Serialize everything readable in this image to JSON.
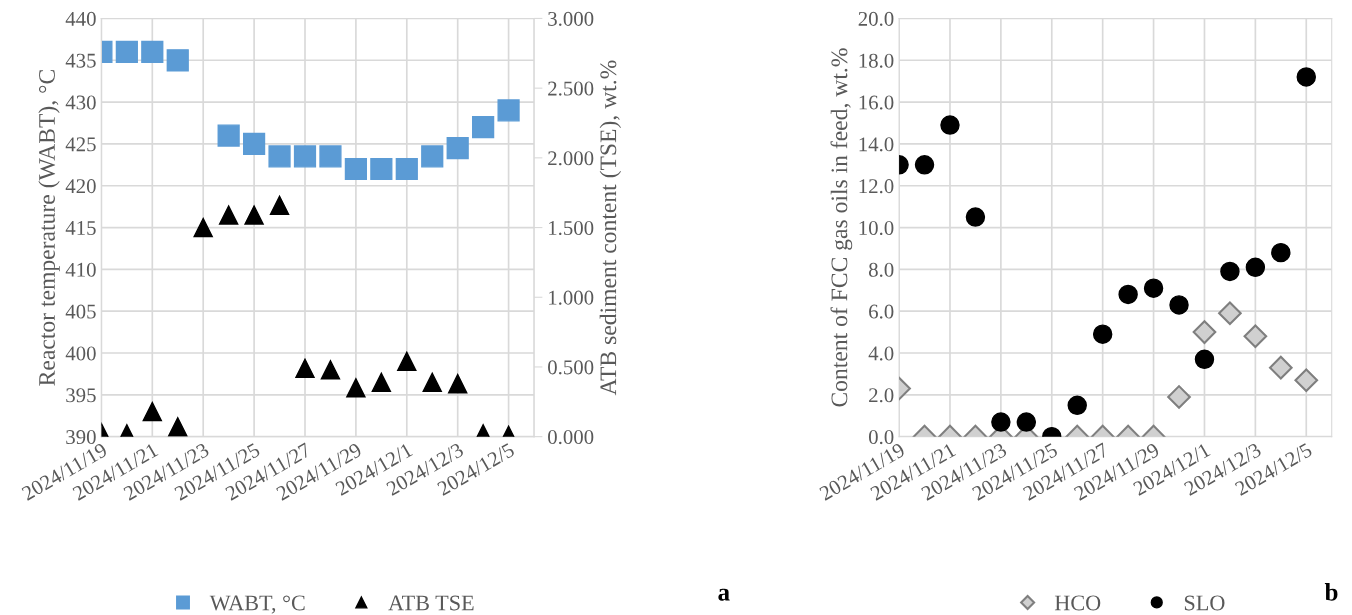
{
  "chart_data": [
    {
      "type": "scatter",
      "ylabel": "Reactor temperature (WABT), °C",
      "y2label": "ATB sediment content (TSE), wt.%",
      "annotations": [
        "a"
      ],
      "x": [
        "2024-11-19",
        "2024-11-20",
        "2024-11-21",
        "2024-11-22",
        "2024-11-23",
        "2024-11-24",
        "2024-11-25",
        "2024-11-26",
        "2024-11-27",
        "2024-11-28",
        "2024-11-29",
        "2024-11-30",
        "2024-12-01",
        "2024-12-02",
        "2024-12-03",
        "2024-12-04",
        "2024-12-05"
      ],
      "xlim": [
        "2024-11-19",
        "2024-12-06"
      ],
      "xticks": [
        {
          "value": "2024-11-19",
          "label": "2024/11/19"
        },
        {
          "value": "2024-11-21",
          "label": "2024/11/21"
        },
        {
          "value": "2024-11-23",
          "label": "2024/11/23"
        },
        {
          "value": "2024-11-25",
          "label": "2024/11/25"
        },
        {
          "value": "2024-11-27",
          "label": "2024/11/27"
        },
        {
          "value": "2024-11-29",
          "label": "2024/11/29"
        },
        {
          "value": "2024-12-01",
          "label": "2024/12/1"
        },
        {
          "value": "2024-12-03",
          "label": "2024/12/3"
        },
        {
          "value": "2024-12-05",
          "label": "2024/12/5"
        }
      ],
      "ylim": [
        390,
        440
      ],
      "yticks": [
        390,
        395,
        400,
        405,
        410,
        415,
        420,
        425,
        430,
        435,
        440
      ],
      "y2lim": [
        0,
        3
      ],
      "y2ticks": [
        {
          "value": 0,
          "label": "0.000"
        },
        {
          "value": 0.5,
          "label": "0.500"
        },
        {
          "value": 1,
          "label": "1.000"
        },
        {
          "value": 1.5,
          "label": "1.500"
        },
        {
          "value": 2,
          "label": "2.000"
        },
        {
          "value": 2.5,
          "label": "2.500"
        },
        {
          "value": 3,
          "label": "3.000"
        }
      ],
      "grid": true,
      "legend": "bottom",
      "series": [
        {
          "name": "WABT, °C",
          "color": "#5b9bd5",
          "marker": "square",
          "values": [
            436,
            436,
            436,
            435,
            null,
            426,
            425,
            423.5,
            423.5,
            423.5,
            422,
            422,
            422,
            423.5,
            424.5,
            427,
            429
          ]
        },
        {
          "name": "ATB TSE",
          "color": "#000000",
          "marker": "triangle",
          "axis": "y2",
          "values": [
            0.03,
            0.02,
            0.18,
            0.07,
            1.5,
            1.59,
            1.59,
            1.66,
            0.49,
            0.48,
            0.35,
            0.39,
            0.54,
            0.39,
            0.38,
            0.02,
            0.01
          ]
        }
      ]
    },
    {
      "type": "scatter",
      "ylabel": "Content of FCC gas oils in feed, wt.%",
      "annotations": [
        "b"
      ],
      "x": [
        "2024-11-19",
        "2024-11-20",
        "2024-11-21",
        "2024-11-22",
        "2024-11-23",
        "2024-11-24",
        "2024-11-25",
        "2024-11-26",
        "2024-11-27",
        "2024-11-28",
        "2024-11-29",
        "2024-11-30",
        "2024-12-01",
        "2024-12-02",
        "2024-12-03",
        "2024-12-04",
        "2024-12-05"
      ],
      "xlim": [
        "2024-11-19",
        "2024-12-06"
      ],
      "xticks": [
        {
          "value": "2024-11-19",
          "label": "2024/11/19"
        },
        {
          "value": "2024-11-21",
          "label": "2024/11/21"
        },
        {
          "value": "2024-11-23",
          "label": "2024/11/23"
        },
        {
          "value": "2024-11-25",
          "label": "2024/11/25"
        },
        {
          "value": "2024-11-27",
          "label": "2024/11/27"
        },
        {
          "value": "2024-11-29",
          "label": "2024/11/29"
        },
        {
          "value": "2024-12-01",
          "label": "2024/12/1"
        },
        {
          "value": "2024-12-03",
          "label": "2024/12/3"
        },
        {
          "value": "2024-12-05",
          "label": "2024/12/5"
        }
      ],
      "ylim": [
        0,
        20
      ],
      "yticks": [
        {
          "value": 0,
          "label": "0.0"
        },
        {
          "value": 2,
          "label": "2.0"
        },
        {
          "value": 4,
          "label": "4.0"
        },
        {
          "value": 6,
          "label": "6.0"
        },
        {
          "value": 8,
          "label": "8.0"
        },
        {
          "value": 10,
          "label": "10.0"
        },
        {
          "value": 12,
          "label": "12.0"
        },
        {
          "value": 14,
          "label": "14.0"
        },
        {
          "value": 16,
          "label": "16.0"
        },
        {
          "value": 18,
          "label": "18.0"
        },
        {
          "value": 20,
          "label": "20.0"
        }
      ],
      "grid": true,
      "legend": "bottom",
      "series": [
        {
          "name": "HCO",
          "color": "#d0d0d0",
          "marker": "diamond",
          "values": [
            2.3,
            0,
            0,
            0,
            0,
            0,
            null,
            0,
            0,
            0,
            0,
            1.9,
            5.0,
            5.9,
            4.8,
            3.3,
            2.7
          ]
        },
        {
          "name": "SLO",
          "color": "#000000",
          "marker": "circle",
          "values": [
            13.0,
            13.0,
            14.9,
            10.5,
            0.7,
            0.7,
            0.0,
            1.5,
            4.9,
            6.8,
            7.1,
            6.3,
            3.7,
            7.9,
            8.1,
            8.8,
            17.2
          ]
        }
      ]
    }
  ]
}
